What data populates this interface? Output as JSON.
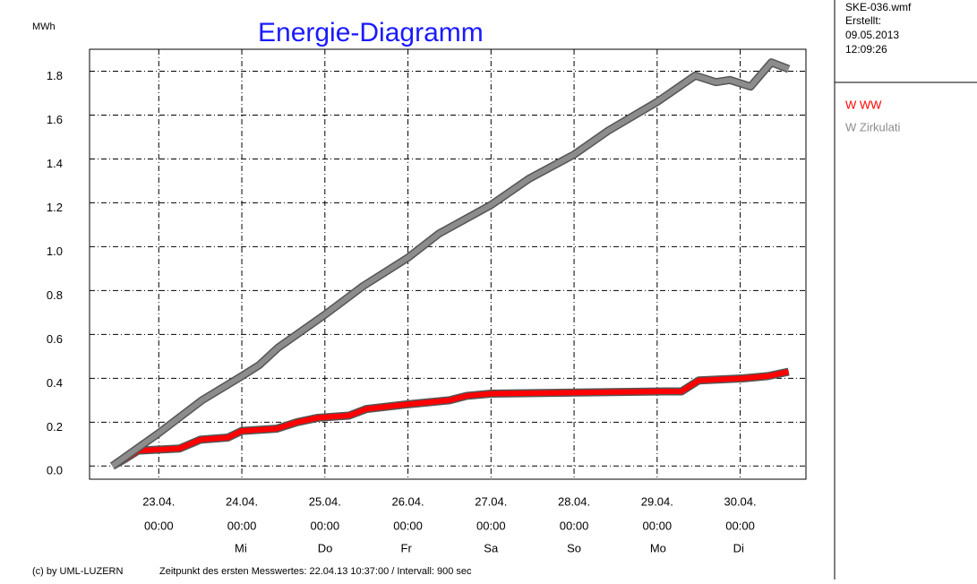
{
  "chart_data": {
    "type": "line",
    "title": "Energie-Diagramm",
    "y_label": "MWh",
    "file": "SKE-036.wmf",
    "created_label": "Erstellt:",
    "created_date": "09.05.2013",
    "created_time": "12:09:26",
    "copyright": "(c) by UML-LUZERN",
    "footer": "Zeitpunkt des ersten Messwertes: 22.04.13 10:37:00 / Intervall: 900 sec",
    "grid": true,
    "legend": "right",
    "ylim": [
      -0.06,
      1.9
    ],
    "yticks": [
      {
        "value": 0,
        "label": "0.0"
      },
      0.2,
      0.4,
      0.6,
      0.8,
      {
        "value": 1,
        "label": "1.0"
      },
      1.2,
      1.4,
      1.6,
      1.8
    ],
    "xlim": [
      "22.04. 04:00",
      "30.04. 19:00"
    ],
    "xticks": [
      {
        "value": "23.04. 00:00",
        "label": "23.04.",
        "time": "00:00",
        "weekday": null
      },
      {
        "value": "24.04. 00:00",
        "label": "24.04.",
        "time": "00:00",
        "weekday": "Mi"
      },
      {
        "value": "25.04. 00:00",
        "label": "25.04.",
        "time": "00:00",
        "weekday": "Do"
      },
      {
        "value": "26.04. 00:00",
        "label": "26.04.",
        "time": "00:00",
        "weekday": "Fr"
      },
      {
        "value": "27.04. 00:00",
        "label": "27.04.",
        "time": "00:00",
        "weekday": "Sa"
      },
      {
        "value": "28.04. 00:00",
        "label": "28.04.",
        "time": "00:00",
        "weekday": "So"
      },
      {
        "value": "29.04. 00:00",
        "label": "29.04.",
        "time": "00:00",
        "weekday": "Mo"
      },
      {
        "value": "30.04. 00:00",
        "label": "30.04.",
        "time": "00:00",
        "weekday": "Di"
      }
    ],
    "series": [
      {
        "name": "W WW",
        "color": "#ff0000",
        "x": [
          "22.04. 10:37",
          "22.04. 14:00",
          "22.04. 18:00",
          "23.04. 06:00",
          "23.04. 12:00",
          "23.04. 20:00",
          "24.04. 00:00",
          "24.04. 10:00",
          "24.04. 16:00",
          "24.04. 22:00",
          "25.04. 07:00",
          "25.04. 12:00",
          "25.04. 23:00",
          "26.04. 12:00",
          "26.04. 17:00",
          "27.04. 00:00",
          "29.04. 02:00",
          "29.04. 07:00",
          "29.04. 12:00",
          "30.04. 01:00",
          "30.04. 08:00",
          "30.04. 14:00"
        ],
        "values": [
          0.0,
          0.03,
          0.07,
          0.08,
          0.12,
          0.13,
          0.16,
          0.17,
          0.2,
          0.22,
          0.23,
          0.26,
          0.28,
          0.3,
          0.32,
          0.33,
          0.34,
          0.34,
          0.39,
          0.4,
          0.41,
          0.43
        ]
      },
      {
        "name": "W Zirkulati",
        "color": "#8c8c8c",
        "x": [
          "22.04. 10:37",
          "23.04. 00:00",
          "23.04. 12:30",
          "24.04. 00:00",
          "24.04. 05:00",
          "24.04. 10:30",
          "25.04. 00:00",
          "25.04. 11:00",
          "26.04. 00:00",
          "26.04. 09:00",
          "27.04. 00:00",
          "27.04. 11:00",
          "28.04. 00:00",
          "28.04. 10:00",
          "29.04. 00:00",
          "29.04. 11:00",
          "29.04. 17:00",
          "29.04. 21:00",
          "30.04. 03:00",
          "30.04. 09:00",
          "30.04. 14:00"
        ],
        "values": [
          0.0,
          0.15,
          0.3,
          0.41,
          0.46,
          0.54,
          0.69,
          0.82,
          0.95,
          1.06,
          1.19,
          1.31,
          1.42,
          1.53,
          1.66,
          1.78,
          1.75,
          1.76,
          1.73,
          1.84,
          1.81
        ]
      }
    ]
  }
}
